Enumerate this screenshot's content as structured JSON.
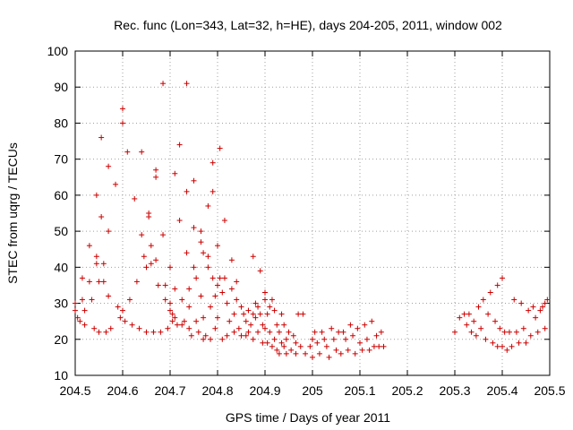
{
  "chart_data": {
    "type": "scatter",
    "title": "Rec. func (Lon=343, Lat=32, h=HE), days 204-205, 2011, window 002",
    "xlabel": "GPS time / Days of year 2011",
    "ylabel": "STEC from uqrg / TECUs",
    "xlim": [
      204.5,
      205.5
    ],
    "ylim": [
      10,
      100
    ],
    "x_ticks": [
      "204.5",
      "204.6",
      "204.7",
      "204.8",
      "204.9",
      "205",
      "205.1",
      "205.2",
      "205.3",
      "205.4",
      "205.5"
    ],
    "y_ticks": [
      "10",
      "20",
      "30",
      "40",
      "50",
      "60",
      "70",
      "80",
      "90",
      "100"
    ],
    "marker": "plus",
    "color": "#cc0000",
    "series": [
      {
        "name": "STEC",
        "points": [
          [
            204.5,
            28
          ],
          [
            204.5,
            30
          ],
          [
            204.505,
            26
          ],
          [
            204.51,
            25
          ],
          [
            204.515,
            31
          ],
          [
            204.515,
            37
          ],
          [
            204.52,
            28
          ],
          [
            204.52,
            24
          ],
          [
            204.53,
            46
          ],
          [
            204.53,
            36
          ],
          [
            204.535,
            31
          ],
          [
            204.54,
            23
          ],
          [
            204.545,
            60
          ],
          [
            204.545,
            43
          ],
          [
            204.545,
            41
          ],
          [
            204.55,
            36
          ],
          [
            204.55,
            22
          ],
          [
            204.555,
            76
          ],
          [
            204.555,
            54
          ],
          [
            204.56,
            41
          ],
          [
            204.56,
            36
          ],
          [
            204.565,
            22
          ],
          [
            204.57,
            68
          ],
          [
            204.57,
            50
          ],
          [
            204.57,
            32
          ],
          [
            204.575,
            23
          ],
          [
            204.585,
            63
          ],
          [
            204.59,
            29
          ],
          [
            204.595,
            26
          ],
          [
            204.6,
            84
          ],
          [
            204.6,
            80
          ],
          [
            204.6,
            28
          ],
          [
            204.605,
            25
          ],
          [
            204.61,
            72
          ],
          [
            204.615,
            31
          ],
          [
            204.62,
            24
          ],
          [
            204.625,
            59
          ],
          [
            204.63,
            36
          ],
          [
            204.635,
            23
          ],
          [
            204.64,
            72
          ],
          [
            204.64,
            49
          ],
          [
            204.645,
            43
          ],
          [
            204.65,
            40
          ],
          [
            204.65,
            22
          ],
          [
            204.655,
            55
          ],
          [
            204.655,
            54
          ],
          [
            204.66,
            46
          ],
          [
            204.66,
            41
          ],
          [
            204.665,
            22
          ],
          [
            204.67,
            67
          ],
          [
            204.67,
            65
          ],
          [
            204.67,
            42
          ],
          [
            204.675,
            35
          ],
          [
            204.68,
            22
          ],
          [
            204.685,
            91
          ],
          [
            204.685,
            49
          ],
          [
            204.69,
            35
          ],
          [
            204.69,
            31
          ],
          [
            204.695,
            23
          ],
          [
            204.7,
            40
          ],
          [
            204.7,
            30
          ],
          [
            204.7,
            28
          ],
          [
            204.705,
            27
          ],
          [
            204.705,
            25
          ],
          [
            204.71,
            66
          ],
          [
            204.71,
            34
          ],
          [
            204.71,
            26
          ],
          [
            204.715,
            24
          ],
          [
            204.72,
            74
          ],
          [
            204.72,
            53
          ],
          [
            204.725,
            31
          ],
          [
            204.725,
            24
          ],
          [
            204.73,
            25
          ],
          [
            204.735,
            91
          ],
          [
            204.735,
            61
          ],
          [
            204.735,
            44
          ],
          [
            204.74,
            34
          ],
          [
            204.74,
            29
          ],
          [
            204.74,
            23
          ],
          [
            204.745,
            21
          ],
          [
            204.75,
            64
          ],
          [
            204.75,
            51
          ],
          [
            204.75,
            40
          ],
          [
            204.755,
            37
          ],
          [
            204.755,
            25
          ],
          [
            204.76,
            22
          ],
          [
            204.765,
            50
          ],
          [
            204.765,
            47
          ],
          [
            204.765,
            32
          ],
          [
            204.77,
            44
          ],
          [
            204.77,
            26
          ],
          [
            204.77,
            20
          ],
          [
            204.775,
            21
          ],
          [
            204.78,
            57
          ],
          [
            204.78,
            43
          ],
          [
            204.78,
            40
          ],
          [
            204.785,
            29
          ],
          [
            204.785,
            20
          ],
          [
            204.79,
            69
          ],
          [
            204.79,
            61
          ],
          [
            204.79,
            37
          ],
          [
            204.795,
            32
          ],
          [
            204.795,
            23
          ],
          [
            204.8,
            46
          ],
          [
            204.8,
            35
          ],
          [
            204.8,
            26
          ],
          [
            204.805,
            73
          ],
          [
            204.805,
            37
          ],
          [
            204.81,
            33
          ],
          [
            204.81,
            20
          ],
          [
            204.815,
            53
          ],
          [
            204.815,
            37
          ],
          [
            204.82,
            30
          ],
          [
            204.82,
            21
          ],
          [
            204.825,
            25
          ],
          [
            204.83,
            42
          ],
          [
            204.83,
            34
          ],
          [
            204.835,
            27
          ],
          [
            204.835,
            22
          ],
          [
            204.84,
            36
          ],
          [
            204.84,
            31
          ],
          [
            204.845,
            23
          ],
          [
            204.85,
            29
          ],
          [
            204.85,
            21
          ],
          [
            204.855,
            27
          ],
          [
            204.86,
            25
          ],
          [
            204.86,
            21
          ],
          [
            204.865,
            28
          ],
          [
            204.865,
            22
          ],
          [
            204.87,
            24
          ],
          [
            204.875,
            43
          ],
          [
            204.875,
            27
          ],
          [
            204.875,
            20
          ],
          [
            204.88,
            30
          ],
          [
            204.88,
            26
          ],
          [
            204.885,
            29
          ],
          [
            204.885,
            22
          ],
          [
            204.89,
            39
          ],
          [
            204.89,
            27
          ],
          [
            204.895,
            24
          ],
          [
            204.895,
            19
          ],
          [
            204.9,
            33
          ],
          [
            204.9,
            31
          ],
          [
            204.9,
            23
          ],
          [
            204.905,
            27
          ],
          [
            204.905,
            19
          ],
          [
            204.91,
            29
          ],
          [
            204.91,
            22
          ],
          [
            204.915,
            31
          ],
          [
            204.915,
            18
          ],
          [
            204.92,
            28
          ],
          [
            204.92,
            20
          ],
          [
            204.925,
            24
          ],
          [
            204.925,
            17
          ],
          [
            204.93,
            22
          ],
          [
            204.93,
            16
          ],
          [
            204.935,
            27
          ],
          [
            204.935,
            19
          ],
          [
            204.94,
            24
          ],
          [
            204.94,
            18
          ],
          [
            204.945,
            20
          ],
          [
            204.945,
            16
          ],
          [
            204.95,
            22
          ],
          [
            204.955,
            17
          ],
          [
            204.96,
            21
          ],
          [
            204.965,
            19
          ],
          [
            204.965,
            16
          ],
          [
            204.97,
            27
          ],
          [
            204.975,
            18
          ],
          [
            204.98,
            27
          ],
          [
            204.985,
            16
          ],
          [
            204.995,
            18
          ],
          [
            205.0,
            20
          ],
          [
            205.0,
            15
          ],
          [
            205.005,
            22
          ],
          [
            205.01,
            19
          ],
          [
            205.015,
            16
          ],
          [
            205.02,
            22
          ],
          [
            205.025,
            20
          ],
          [
            205.03,
            18
          ],
          [
            205.035,
            15
          ],
          [
            205.04,
            23
          ],
          [
            205.045,
            20
          ],
          [
            205.05,
            17
          ],
          [
            205.055,
            22
          ],
          [
            205.06,
            16
          ],
          [
            205.065,
            22
          ],
          [
            205.07,
            20
          ],
          [
            205.075,
            17
          ],
          [
            205.08,
            24
          ],
          [
            205.085,
            21
          ],
          [
            205.09,
            16
          ],
          [
            205.095,
            23
          ],
          [
            205.1,
            19
          ],
          [
            205.105,
            17
          ],
          [
            205.11,
            24
          ],
          [
            205.115,
            20
          ],
          [
            205.12,
            17
          ],
          [
            205.125,
            25
          ],
          [
            205.13,
            18
          ],
          [
            205.135,
            21
          ],
          [
            205.14,
            18
          ],
          [
            205.145,
            22
          ],
          [
            205.15,
            18
          ],
          [
            205.3,
            22
          ],
          [
            205.31,
            26
          ],
          [
            205.32,
            27
          ],
          [
            205.325,
            24
          ],
          [
            205.33,
            27
          ],
          [
            205.335,
            22
          ],
          [
            205.34,
            25
          ],
          [
            205.345,
            21
          ],
          [
            205.35,
            29
          ],
          [
            205.355,
            23
          ],
          [
            205.36,
            31
          ],
          [
            205.365,
            20
          ],
          [
            205.37,
            27
          ],
          [
            205.375,
            33
          ],
          [
            205.38,
            19
          ],
          [
            205.385,
            25
          ],
          [
            205.39,
            35
          ],
          [
            205.39,
            18
          ],
          [
            205.395,
            23
          ],
          [
            205.4,
            37
          ],
          [
            205.4,
            18
          ],
          [
            205.405,
            22
          ],
          [
            205.41,
            17
          ],
          [
            205.415,
            22
          ],
          [
            205.42,
            18
          ],
          [
            205.425,
            31
          ],
          [
            205.43,
            22
          ],
          [
            205.435,
            19
          ],
          [
            205.44,
            30
          ],
          [
            205.445,
            23
          ],
          [
            205.45,
            19
          ],
          [
            205.455,
            28
          ],
          [
            205.46,
            21
          ],
          [
            205.465,
            29
          ],
          [
            205.47,
            26
          ],
          [
            205.475,
            22
          ],
          [
            205.48,
            28
          ],
          [
            205.485,
            29
          ],
          [
            205.49,
            30
          ],
          [
            205.49,
            23
          ],
          [
            205.495,
            31
          ]
        ]
      }
    ]
  }
}
